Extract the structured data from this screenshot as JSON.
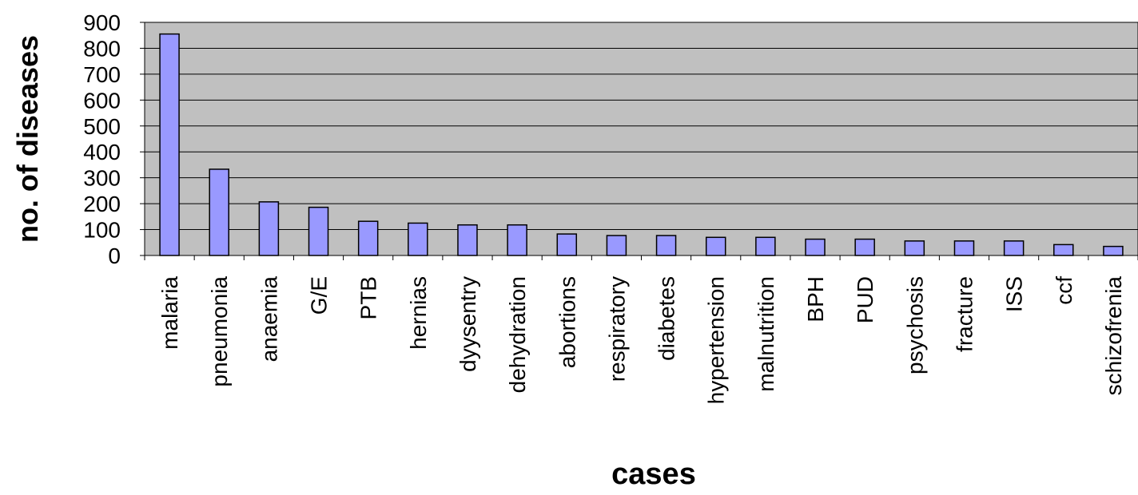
{
  "chart_data": {
    "type": "bar",
    "title": "",
    "xlabel": "cases",
    "ylabel": "no. of diseases",
    "ylim": [
      0,
      900
    ],
    "yticks": [
      0,
      100,
      200,
      300,
      400,
      500,
      600,
      700,
      800,
      900
    ],
    "grid": true,
    "legend": "none",
    "categories": [
      "malaria",
      "pneumonia",
      "anaemia",
      "G/E",
      "PTB",
      "hernias",
      "dyysentry",
      "dehydration",
      "abortions",
      "respiratory",
      "diabetes",
      "hypertension",
      "malnutrition",
      "BPH",
      "PUD",
      "psychosis",
      "fracture",
      "ISS",
      "ccf",
      "schizofrenia"
    ],
    "values": [
      855,
      333,
      207,
      186,
      132,
      125,
      118,
      118,
      83,
      77,
      77,
      70,
      70,
      63,
      63,
      56,
      56,
      56,
      42,
      35
    ],
    "colors": {
      "plot_bg": "#c0c0c0",
      "bar_fill": "#9999ff",
      "bar_stroke": "#000000",
      "grid": "#000000",
      "text": "#000000"
    }
  }
}
